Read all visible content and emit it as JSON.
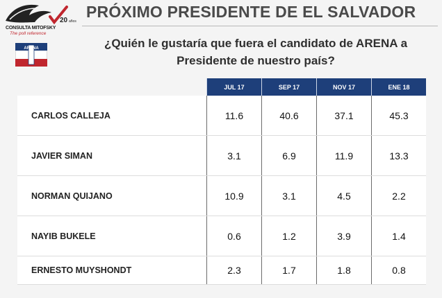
{
  "logo": {
    "name": "CONSULTA MITOFSKY",
    "tagline": "The poll reference",
    "anniversary": "20",
    "anniversary_suffix": "años"
  },
  "flag": {
    "label": "ARENA"
  },
  "header": {
    "title": "PRÓXIMO PRESIDENTE DE EL SALVADOR",
    "question_line1": "¿Quién le gustaría que fuera el candidato de ARENA a",
    "question_line2": "Presidente de nuestro país?"
  },
  "colors": {
    "header_bg": "#1e3f7a",
    "title": "#4a4a4a",
    "accent_red": "#c0262e"
  },
  "chart_data": {
    "type": "table",
    "columns": [
      "JUL 17",
      "SEP 17",
      "NOV 17",
      "ENE 18"
    ],
    "rows": [
      {
        "name": "CARLOS CALLEJA",
        "values": [
          "11.6",
          "40.6",
          "37.1",
          "45.3"
        ]
      },
      {
        "name": "JAVIER SIMAN",
        "values": [
          "3.1",
          "6.9",
          "11.9",
          "13.3"
        ]
      },
      {
        "name": "NORMAN QUIJANO",
        "values": [
          "10.9",
          "3.1",
          "4.5",
          "2.2"
        ]
      },
      {
        "name": "NAYIB BUKELE",
        "values": [
          "0.6",
          "1.2",
          "3.9",
          "1.4"
        ]
      },
      {
        "name": "ERNESTO MUYSHONDT",
        "values": [
          "2.3",
          "1.7",
          "1.8",
          "0.8"
        ]
      }
    ]
  }
}
